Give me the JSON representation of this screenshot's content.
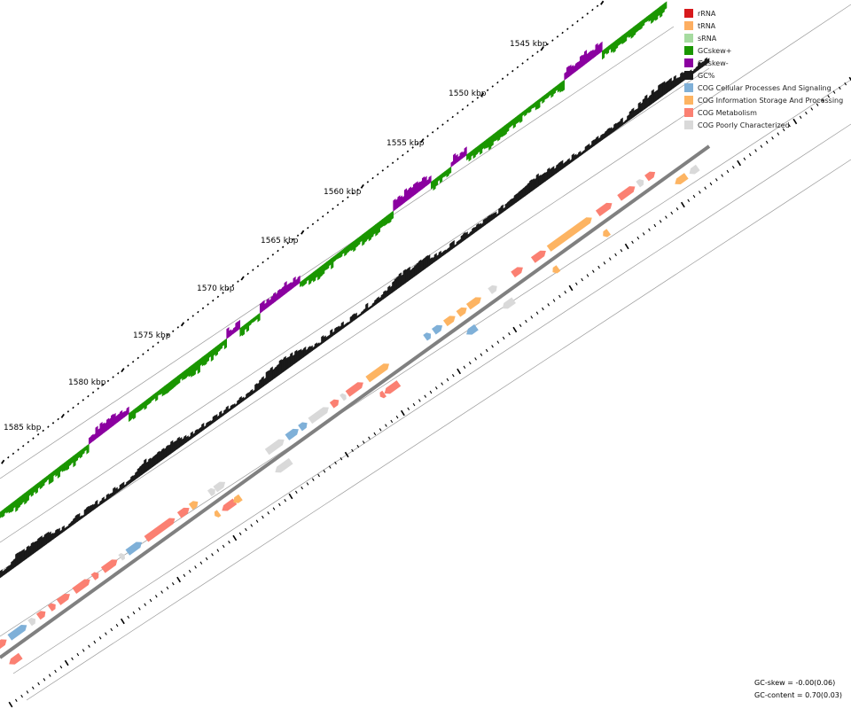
{
  "legend": [
    {
      "label": "rRNA",
      "color": "#d7191c"
    },
    {
      "label": "tRNA",
      "color": "#fdae61"
    },
    {
      "label": "sRNA",
      "color": "#a6dba0"
    },
    {
      "label": "GCskew+",
      "color": "#1a9600"
    },
    {
      "label": "GCskew-",
      "color": "#8b00a0"
    },
    {
      "label": "GC%",
      "color": "#1a1a1a"
    },
    {
      "label": "COG Cellular Processes And Signaling",
      "color": "#7fb0d8"
    },
    {
      "label": "COG Information Storage And Processing",
      "color": "#fdb462"
    },
    {
      "label": "COG Metabolism",
      "color": "#fb8072"
    },
    {
      "label": "COG Poorly Characterized",
      "color": "#d9d9d9"
    }
  ],
  "tick_labels": [
    "1545 kbp",
    "1550 kbp",
    "1555 kbp",
    "1560 kbp",
    "1565 kbp",
    "1570 kbp",
    "1575 kbp",
    "1580 kbp",
    "1585 kbp"
  ],
  "stats": {
    "gc_skew": "GC-skew = -0.00(0.06)",
    "gc_content": "GC-content = 0.70(0.03)"
  }
}
